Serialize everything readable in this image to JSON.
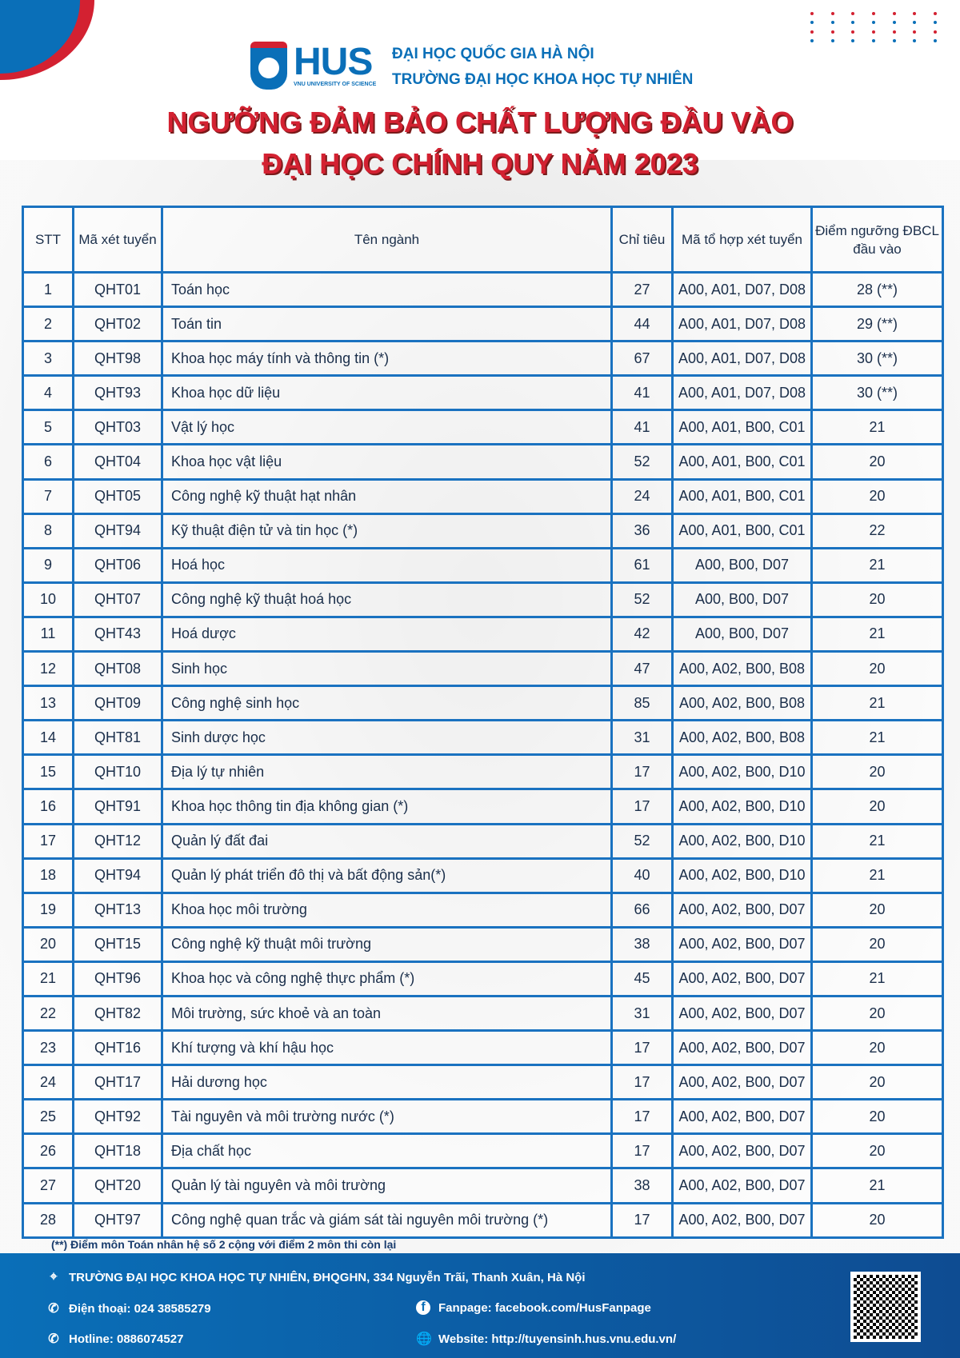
{
  "header": {
    "logo_text": "HUS",
    "logo_sub": "VNU UNIVERSITY OF SCIENCE",
    "org_line1": "ĐẠI HỌC QUỐC GIA HÀ NỘI",
    "org_line2": "TRƯỜNG ĐẠI HỌC KHOA HỌC TỰ NHIÊN",
    "title_line1": "NGƯỠNG ĐẢM BẢO CHẤT LƯỢNG ĐẦU VÀO",
    "title_line2": "ĐẠI HỌC CHÍNH QUY NĂM 2023"
  },
  "colors": {
    "brand_blue": "#0a6fb8",
    "brand_red": "#d32131"
  },
  "table": {
    "headers": [
      "STT",
      "Mã xét tuyển",
      "Tên ngành",
      "Chỉ tiêu",
      "Mã tổ hợp xét tuyển",
      "Điểm ngưỡng ĐBCL đầu vào"
    ],
    "rows": [
      [
        "1",
        "QHT01",
        "Toán học",
        "27",
        "A00, A01, D07, D08",
        "28 (**)"
      ],
      [
        "2",
        "QHT02",
        "Toán tin",
        "44",
        "A00, A01, D07, D08",
        "29 (**)"
      ],
      [
        "3",
        "QHT98",
        "Khoa học máy tính và thông tin (*)",
        "67",
        "A00, A01, D07, D08",
        "30 (**)"
      ],
      [
        "4",
        "QHT93",
        "Khoa học dữ liệu",
        "41",
        "A00, A01, D07, D08",
        "30 (**)"
      ],
      [
        "5",
        "QHT03",
        "Vật lý học",
        "41",
        "A00, A01, B00, C01",
        "21"
      ],
      [
        "6",
        "QHT04",
        "Khoa học vật liệu",
        "52",
        "A00, A01, B00, C01",
        "20"
      ],
      [
        "7",
        "QHT05",
        "Công nghệ kỹ thuật hạt nhân",
        "24",
        "A00, A01, B00, C01",
        "20"
      ],
      [
        "8",
        "QHT94",
        "Kỹ thuật điện tử và tin học (*)",
        "36",
        "A00, A01, B00, C01",
        "22"
      ],
      [
        "9",
        "QHT06",
        "Hoá học",
        "61",
        "A00, B00, D07",
        "21"
      ],
      [
        "10",
        "QHT07",
        "Công nghệ kỹ thuật hoá học",
        "52",
        "A00, B00, D07",
        "20"
      ],
      [
        "11",
        "QHT43",
        "Hoá dược",
        "42",
        "A00, B00, D07",
        "21"
      ],
      [
        "12",
        "QHT08",
        "Sinh học",
        "47",
        "A00, A02, B00, B08",
        "20"
      ],
      [
        "13",
        "QHT09",
        "Công nghệ sinh học",
        "85",
        "A00, A02, B00, B08",
        "21"
      ],
      [
        "14",
        "QHT81",
        "Sinh dược học",
        "31",
        "A00, A02, B00, B08",
        "21"
      ],
      [
        "15",
        "QHT10",
        "Địa lý tự nhiên",
        "17",
        "A00, A02, B00, D10",
        "20"
      ],
      [
        "16",
        "QHT91",
        "Khoa học thông tin địa không gian (*)",
        "17",
        "A00, A02, B00, D10",
        "20"
      ],
      [
        "17",
        "QHT12",
        "Quản lý đất đai",
        "52",
        "A00, A02, B00, D10",
        "21"
      ],
      [
        "18",
        "QHT94",
        "Quản lý phát triển đô thị và bất động sản(*)",
        "40",
        "A00, A02, B00, D10",
        "21"
      ],
      [
        "19",
        "QHT13",
        "Khoa học môi trường",
        "66",
        "A00, A02, B00, D07",
        "20"
      ],
      [
        "20",
        "QHT15",
        "Công nghệ kỹ thuật môi trường",
        "38",
        "A00, A02, B00, D07",
        "20"
      ],
      [
        "21",
        "QHT96",
        "Khoa học và công nghệ thực phẩm (*)",
        "45",
        "A00, A02, B00, D07",
        "21"
      ],
      [
        "22",
        "QHT82",
        "Môi trường, sức khoẻ và an toàn",
        "31",
        "A00, A02, B00, D07",
        "20"
      ],
      [
        "23",
        "QHT16",
        "Khí tượng và khí hậu học",
        "17",
        "A00, A02, B00, D07",
        "20"
      ],
      [
        "24",
        "QHT17",
        "Hải dương học",
        "17",
        "A00, A02, B00, D07",
        "20"
      ],
      [
        "25",
        "QHT92",
        "Tài nguyên và môi trường nước (*)",
        "17",
        "A00, A02, B00, D07",
        "20"
      ],
      [
        "26",
        "QHT18",
        "Địa chất học",
        "17",
        "A00, A02, B00, D07",
        "20"
      ],
      [
        "27",
        "QHT20",
        "Quản lý tài nguyên và môi trường",
        "38",
        "A00, A02, B00, D07",
        "21"
      ],
      [
        "28",
        "QHT97",
        "Công nghệ quan trắc và giám sát tài nguyên môi trường (*)",
        "17",
        "A00, A02, B00, D07",
        "20"
      ]
    ]
  },
  "note": "(**) Điểm môn Toán nhân hệ số 2 cộng với điểm 2 môn thi còn lại",
  "footer": {
    "address": "TRƯỜNG ĐẠI HỌC KHOA HỌC TỰ NHIÊN, ĐHQGHN, 334 Nguyễn Trãi, Thanh Xuân, Hà Nội",
    "phone": "Điện thoại: 024 38585279",
    "hotline": "Hotline: 0886074527",
    "fanpage": "Fanpage: facebook.com/HusFanpage",
    "website": "Website: http://tuyensinh.hus.vnu.edu.vn/",
    "icons": [
      "location-icon",
      "phone-icon",
      "facebook-icon",
      "globe-icon"
    ]
  }
}
